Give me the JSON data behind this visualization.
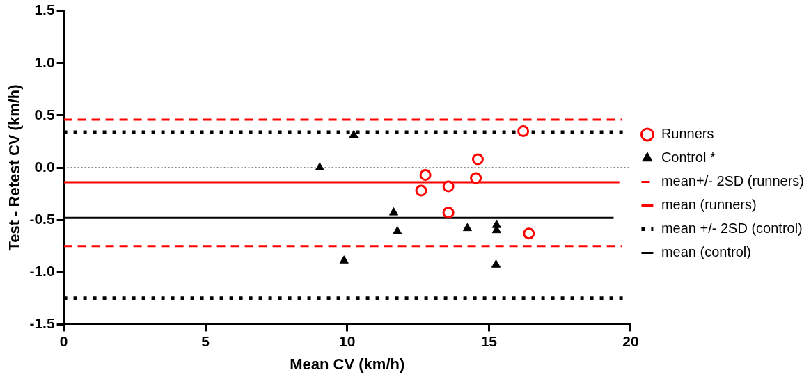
{
  "chart_data": {
    "type": "scatter",
    "xlabel": "Mean CV (km/h)",
    "ylabel": "Test - Retest CV (km/h)",
    "xlim": [
      0,
      20
    ],
    "xticks": [
      0,
      5,
      10,
      15,
      20
    ],
    "ylim": [
      -1.5,
      1.5
    ],
    "yticks": [
      {
        "value": -1.5,
        "label": "-1.5"
      },
      {
        "value": -1,
        "label": "-1.0"
      },
      {
        "value": -0.5,
        "label": "-0.5"
      },
      {
        "value": 0,
        "label": "0.0"
      },
      {
        "value": 0.5,
        "label": "0.5"
      },
      {
        "value": 1,
        "label": "1.0"
      },
      {
        "value": 1.5,
        "label": "1.5"
      }
    ],
    "grid": false,
    "legend": "right",
    "ref_lines": [
      {
        "axis": "y",
        "value": 0,
        "color": "#000000",
        "line_style": "dotted"
      }
    ],
    "series": [
      {
        "name": "Runners",
        "type": "scatter",
        "color": "#ff0000",
        "marker": "circle",
        "x": [
          16.21,
          14.61,
          12.76,
          14.54,
          13.57,
          12.61,
          13.57,
          16.41
        ],
        "values": [
          0.35,
          0.08,
          -0.07,
          -0.1,
          -0.18,
          -0.22,
          -0.43,
          -0.63
        ]
      },
      {
        "name": "Control *",
        "type": "scatter",
        "color": "#000000",
        "marker": "triangle",
        "x": [
          10.23,
          9.03,
          11.64,
          11.77,
          9.89,
          14.24,
          15.27,
          15.27,
          15.25
        ],
        "values": [
          0.31,
          0,
          -0.43,
          -0.61,
          -0.89,
          -0.58,
          -0.55,
          -0.6,
          -0.93
        ]
      },
      {
        "name": "mean+/- 2SD (runners)",
        "type": "line",
        "color": "#ff0000",
        "marker": "none",
        "line_style": "dashed",
        "x": [
          0,
          19.7
        ],
        "values": [
          0.46,
          0.46
        ]
      },
      {
        "type": "line",
        "color": "#ff0000",
        "marker": "none",
        "line_style": "dashed",
        "x": [
          0,
          19.7
        ],
        "values": [
          -0.75,
          -0.75
        ]
      },
      {
        "name": "mean (runners)",
        "type": "line",
        "color": "#ff0000",
        "marker": "none",
        "line_style": "solid",
        "x": [
          0,
          19.6
        ],
        "values": [
          -0.14,
          -0.14
        ]
      },
      {
        "name": "mean +/- 2SD (control)",
        "type": "line",
        "color": "#000000",
        "marker": "none",
        "line_style": "dotted",
        "x": [
          0,
          19.8
        ],
        "values": [
          0.34,
          0.34
        ]
      },
      {
        "type": "line",
        "color": "#000000",
        "marker": "none",
        "line_style": "dotted",
        "x": [
          0,
          19.8
        ],
        "values": [
          -1.25,
          -1.25
        ]
      },
      {
        "name": "mean (control)",
        "type": "line",
        "color": "#000000",
        "marker": "none",
        "line_style": "solid",
        "x": [
          0,
          19.4
        ],
        "values": [
          -0.48,
          -0.48
        ]
      }
    ]
  }
}
